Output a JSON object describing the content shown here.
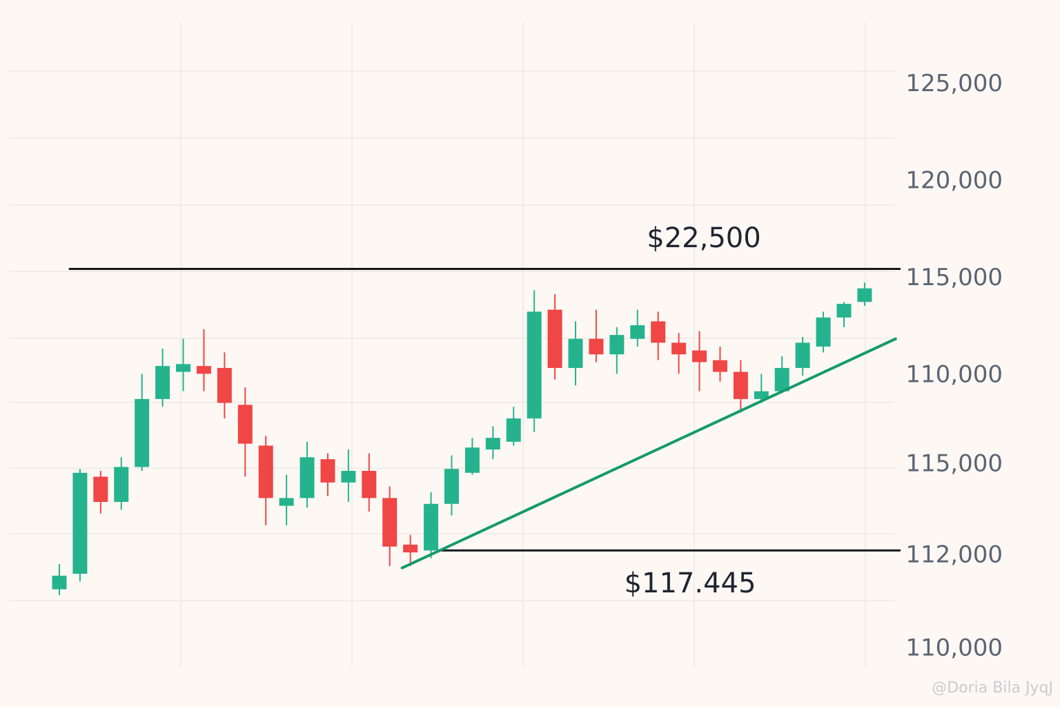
{
  "chart_data": {
    "type": "candlestick",
    "open": [
      99000,
      99800,
      104800,
      103500,
      105300,
      108800,
      110200,
      110500,
      110400,
      108500,
      106400,
      103300,
      103700,
      105700,
      104500,
      105100,
      103700,
      101300,
      101000,
      103400,
      105000,
      106200,
      106600,
      107800,
      113400,
      110400,
      111900,
      111100,
      111900,
      112800,
      111700,
      111300,
      110800,
      110200,
      108800,
      109200,
      110400,
      111500,
      113000,
      113800
    ],
    "high": [
      100300,
      105200,
      105100,
      105800,
      110100,
      111400,
      111900,
      112400,
      111200,
      109400,
      106900,
      104900,
      106600,
      106000,
      106200,
      106000,
      104300,
      101800,
      104000,
      105900,
      106800,
      107400,
      108400,
      114400,
      114200,
      112800,
      113400,
      112500,
      113400,
      113300,
      112200,
      112300,
      111500,
      110800,
      110100,
      111000,
      112000,
      113300,
      113800,
      114800
    ],
    "low": [
      98700,
      99400,
      102900,
      103100,
      105100,
      108400,
      109200,
      109200,
      107800,
      104800,
      102300,
      102300,
      103200,
      103800,
      103500,
      103000,
      100200,
      100200,
      100600,
      102800,
      104900,
      105700,
      106400,
      107100,
      109800,
      109500,
      110700,
      110100,
      111500,
      110800,
      110100,
      109200,
      109700,
      108100,
      108600,
      109100,
      110000,
      111200,
      112500,
      113600
    ],
    "close": [
      99700,
      105000,
      103500,
      105300,
      108800,
      110500,
      110600,
      110100,
      108600,
      106500,
      103700,
      103700,
      105800,
      104500,
      105100,
      103700,
      101200,
      100900,
      103400,
      105200,
      106300,
      106800,
      107800,
      113300,
      110400,
      111900,
      111100,
      112100,
      112600,
      111700,
      111100,
      110700,
      110200,
      108800,
      109200,
      110400,
      111700,
      113000,
      113700,
      114500
    ],
    "up_color": "#25b38e",
    "down_color": "#f04646",
    "ylim": [
      95000,
      128000
    ],
    "yticks": [
      {
        "value": 125000,
        "label": "125,000"
      },
      {
        "value": 120000,
        "label": "120,000"
      },
      {
        "value": 115000,
        "label": "115,000"
      },
      {
        "value": 110000,
        "label": "110,000"
      }
    ],
    "extra_ytick_labels": [
      "115,000",
      "112,000",
      "110,000"
    ],
    "resistance": {
      "x": [
        0.5,
        40.7
      ],
      "values": [
        115500,
        115500
      ],
      "color": "#15181d"
    },
    "support": {
      "x": [
        18.5,
        40.7
      ],
      "values": [
        101000,
        101000
      ],
      "color": "#15181d"
    },
    "trendline": {
      "x": [
        16.6,
        40.5
      ],
      "values": [
        100100,
        111900
      ],
      "color": "#149a6c"
    },
    "annotations": [
      "$22,500",
      "$117.445"
    ],
    "watermark": "@Doria Bila JyqJ"
  }
}
